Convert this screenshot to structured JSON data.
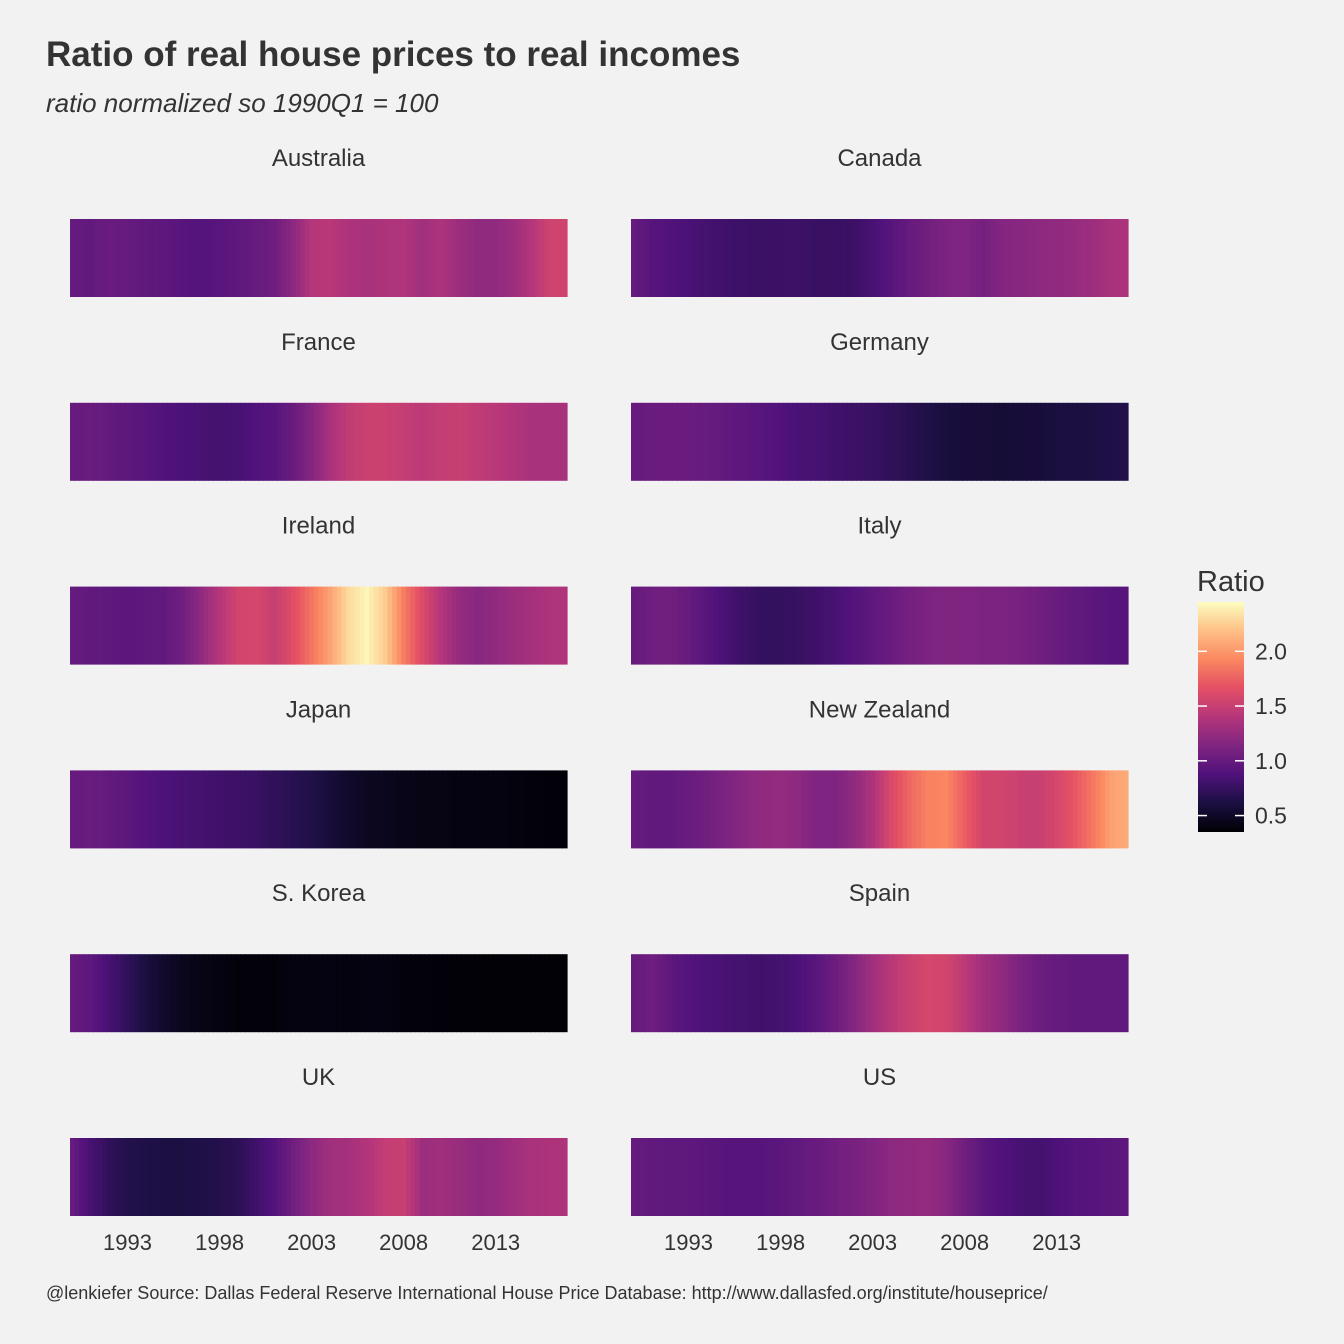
{
  "chart_data": {
    "type": "heatmap",
    "title": "Ratio of real house prices to real incomes",
    "subtitle": "ratio normalized so 1990Q1 = 100",
    "caption": "@lenkiefer Source: Dallas Federal Reserve International House Price Database: http://www.dallasfed.org/institute/houseprice/",
    "xlabel": "",
    "ylabel": "",
    "x_range": [
      1990.0,
      2016.75
    ],
    "x_ticks": [
      "1993",
      "1998",
      "2003",
      "2008",
      "2013"
    ],
    "legend": {
      "title": "Ratio",
      "position": "right",
      "range": [
        0.35,
        2.45
      ],
      "ticks": [
        "0.5",
        "1.0",
        "1.5",
        "2.0"
      ],
      "palette": "magma"
    },
    "grid": false,
    "panel_values_note": "each series is ratio at year starts 1990..2017 (interpolated quarterly)",
    "x": [
      1990,
      1991,
      1992,
      1993,
      1994,
      1995,
      1996,
      1997,
      1998,
      1999,
      2000,
      2001,
      2002,
      2003,
      2004,
      2005,
      2006,
      2007,
      2008,
      2009,
      2010,
      2011,
      2012,
      2013,
      2014,
      2015,
      2016,
      2017
    ],
    "series": [
      {
        "name": "Australia",
        "values": [
          1.0,
          0.98,
          1.02,
          1.0,
          0.97,
          0.95,
          0.92,
          0.9,
          0.93,
          0.96,
          1.0,
          1.05,
          1.2,
          1.4,
          1.42,
          1.36,
          1.34,
          1.36,
          1.38,
          1.3,
          1.36,
          1.28,
          1.22,
          1.22,
          1.28,
          1.4,
          1.55,
          1.55
        ]
      },
      {
        "name": "Canada",
        "values": [
          1.0,
          0.92,
          0.88,
          0.85,
          0.82,
          0.8,
          0.78,
          0.77,
          0.78,
          0.78,
          0.76,
          0.76,
          0.78,
          0.84,
          0.92,
          1.0,
          1.06,
          1.12,
          1.14,
          1.08,
          1.16,
          1.18,
          1.2,
          1.22,
          1.25,
          1.28,
          1.34,
          1.36
        ]
      },
      {
        "name": "France",
        "values": [
          1.0,
          1.02,
          0.98,
          0.95,
          0.92,
          0.88,
          0.86,
          0.84,
          0.82,
          0.84,
          0.88,
          0.92,
          1.02,
          1.16,
          1.34,
          1.46,
          1.52,
          1.52,
          1.48,
          1.44,
          1.48,
          1.5,
          1.46,
          1.42,
          1.38,
          1.34,
          1.34,
          1.34
        ]
      },
      {
        "name": "Germany",
        "values": [
          1.0,
          1.02,
          1.02,
          1.02,
          1.0,
          0.98,
          0.95,
          0.92,
          0.88,
          0.85,
          0.83,
          0.8,
          0.78,
          0.76,
          0.72,
          0.68,
          0.64,
          0.6,
          0.58,
          0.58,
          0.56,
          0.58,
          0.58,
          0.6,
          0.6,
          0.62,
          0.64,
          0.66
        ]
      },
      {
        "name": "Ireland",
        "values": [
          1.0,
          0.98,
          0.96,
          0.94,
          0.96,
          0.98,
          1.06,
          1.22,
          1.4,
          1.56,
          1.58,
          1.5,
          1.64,
          1.84,
          2.05,
          2.3,
          2.42,
          2.24,
          1.88,
          1.62,
          1.4,
          1.24,
          1.18,
          1.22,
          1.28,
          1.32,
          1.36,
          1.38
        ]
      },
      {
        "name": "Italy",
        "values": [
          1.0,
          1.05,
          1.06,
          1.0,
          0.92,
          0.84,
          0.78,
          0.74,
          0.74,
          0.76,
          0.8,
          0.84,
          0.9,
          0.96,
          1.02,
          1.08,
          1.12,
          1.14,
          1.14,
          1.12,
          1.12,
          1.1,
          1.06,
          1.02,
          0.98,
          0.94,
          0.92,
          0.92
        ]
      },
      {
        "name": "Japan",
        "values": [
          1.0,
          1.02,
          0.98,
          0.94,
          0.9,
          0.86,
          0.84,
          0.82,
          0.8,
          0.78,
          0.76,
          0.72,
          0.68,
          0.64,
          0.58,
          0.52,
          0.48,
          0.46,
          0.44,
          0.42,
          0.42,
          0.4,
          0.4,
          0.4,
          0.39,
          0.38,
          0.37,
          0.37
        ]
      },
      {
        "name": "New Zealand",
        "values": [
          1.0,
          0.98,
          0.98,
          1.02,
          1.06,
          1.12,
          1.18,
          1.22,
          1.24,
          1.2,
          1.14,
          1.14,
          1.22,
          1.36,
          1.6,
          1.78,
          1.9,
          1.92,
          1.74,
          1.56,
          1.56,
          1.52,
          1.5,
          1.58,
          1.7,
          1.86,
          2.05,
          2.1
        ]
      },
      {
        "name": "S. Korea",
        "values": [
          1.0,
          0.95,
          0.84,
          0.72,
          0.6,
          0.52,
          0.46,
          0.42,
          0.4,
          0.38,
          0.38,
          0.38,
          0.4,
          0.4,
          0.4,
          0.39,
          0.4,
          0.4,
          0.38,
          0.38,
          0.37,
          0.37,
          0.36,
          0.36,
          0.36,
          0.36,
          0.36,
          0.36
        ]
      },
      {
        "name": "Spain",
        "values": [
          1.0,
          1.05,
          0.96,
          0.9,
          0.86,
          0.84,
          0.82,
          0.8,
          0.82,
          0.86,
          0.94,
          1.04,
          1.16,
          1.3,
          1.42,
          1.52,
          1.58,
          1.56,
          1.44,
          1.3,
          1.22,
          1.12,
          1.04,
          1.0,
          0.98,
          0.98,
          0.98,
          0.98
        ]
      },
      {
        "name": "UK",
        "values": [
          1.0,
          0.84,
          0.72,
          0.66,
          0.64,
          0.62,
          0.62,
          0.64,
          0.66,
          0.7,
          0.8,
          0.9,
          1.06,
          1.2,
          1.3,
          1.32,
          1.38,
          1.48,
          1.5,
          1.28,
          1.3,
          1.26,
          1.22,
          1.24,
          1.3,
          1.34,
          1.36,
          1.36
        ]
      },
      {
        "name": "US",
        "values": [
          1.0,
          0.98,
          0.96,
          0.96,
          0.94,
          0.92,
          0.92,
          0.92,
          0.94,
          0.98,
          1.02,
          1.06,
          1.1,
          1.14,
          1.2,
          1.22,
          1.24,
          1.18,
          1.06,
          0.94,
          0.88,
          0.84,
          0.82,
          0.86,
          0.9,
          0.92,
          0.94,
          0.96
        ]
      }
    ]
  }
}
